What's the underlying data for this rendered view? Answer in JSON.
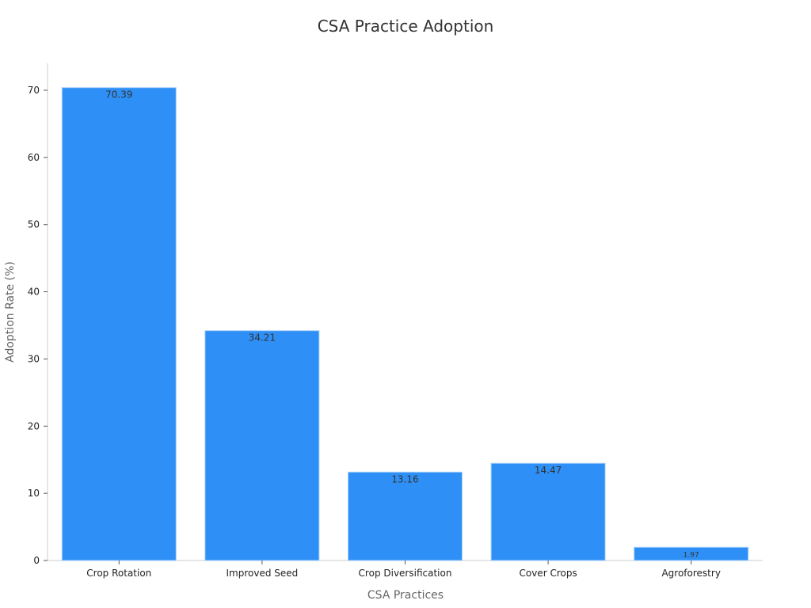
{
  "chart_data": {
    "type": "bar",
    "title": "CSA Practice Adoption",
    "xlabel": "CSA Practices",
    "ylabel": "Adoption Rate (%)",
    "categories": [
      "Crop Rotation",
      "Improved Seed",
      "Crop Diversification",
      "Cover Crops",
      "Agroforestry"
    ],
    "values": [
      70.39,
      34.21,
      13.16,
      14.47,
      1.97
    ],
    "data_labels": [
      "70.39",
      "34.21",
      "13.16",
      "14.47",
      "1.97"
    ],
    "ylim": [
      0,
      74
    ],
    "yticks": [
      0,
      10,
      20,
      30,
      40,
      50,
      60,
      70
    ],
    "grid": false,
    "legend": "none",
    "colors": {
      "bar": "#2e90f7",
      "bar_edge": "#a9cff7",
      "axis": "#cccccc"
    }
  }
}
